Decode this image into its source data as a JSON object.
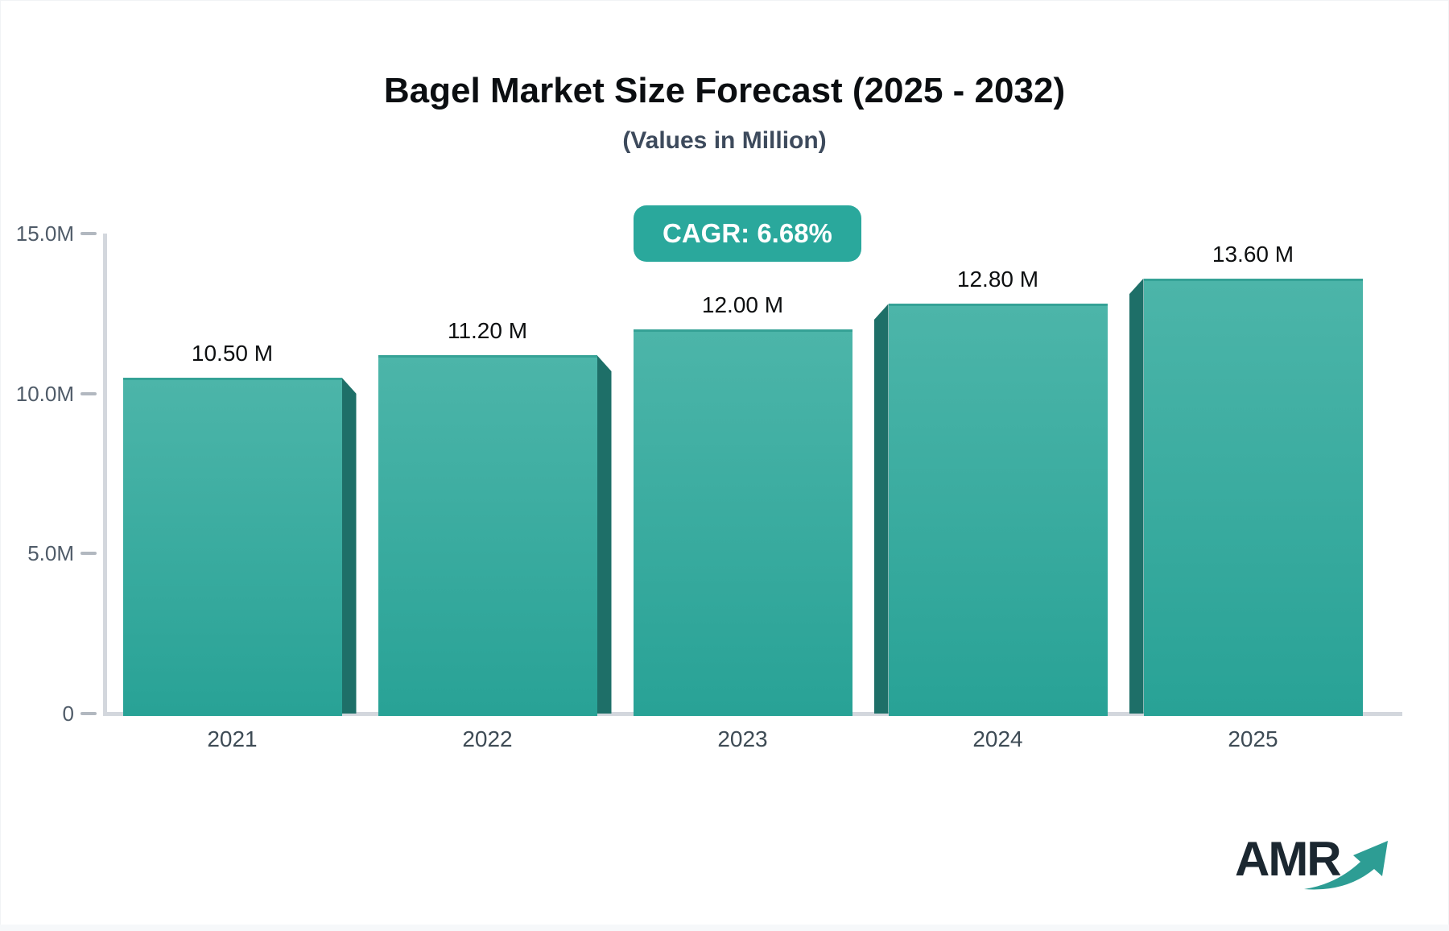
{
  "header": {
    "title": "Bagel Market Size Forecast (2025 - 2032)",
    "subtitle": "(Values in Million)",
    "cagr_badge": "CAGR: 6.68%"
  },
  "chart_data": {
    "type": "bar",
    "title": "Bagel Market Size Forecast (2025 - 2032)",
    "subtitle": "(Values in Million)",
    "unit": "Million",
    "cagr": "6.68%",
    "categories": [
      "2021",
      "2022",
      "2023",
      "2024",
      "2025"
    ],
    "values": [
      10.5,
      11.2,
      12.0,
      12.8,
      13.6
    ],
    "value_labels": [
      "10.50 M",
      "11.20 M",
      "12.00 M",
      "12.80 M",
      "13.60 M"
    ],
    "ylim": [
      0,
      15
    ],
    "y_ticks": [
      {
        "value": 15,
        "label": "15.0M"
      },
      {
        "value": 10,
        "label": "10.0M"
      },
      {
        "value": 5,
        "label": "5.0M"
      },
      {
        "value": 0,
        "label": "0"
      }
    ],
    "grid": false,
    "legend": false,
    "bar_style": "3d-bevel",
    "colors": {
      "bar_top": "#4cb5a9",
      "bar_bottom": "#28a296",
      "bar_side": "#1e6f68",
      "bar_top_edge": "#35a296",
      "badge_bg": "#2aa89c",
      "axis_line": "#d3d7dd",
      "tick": "#b2b8c0",
      "y_label": "#4f5b68",
      "x_label": "#3e4b55",
      "value_label": "#0d0f10"
    }
  },
  "footer": {
    "logo_text": "AMR",
    "logo_arrow_color": "#2d9d94"
  }
}
